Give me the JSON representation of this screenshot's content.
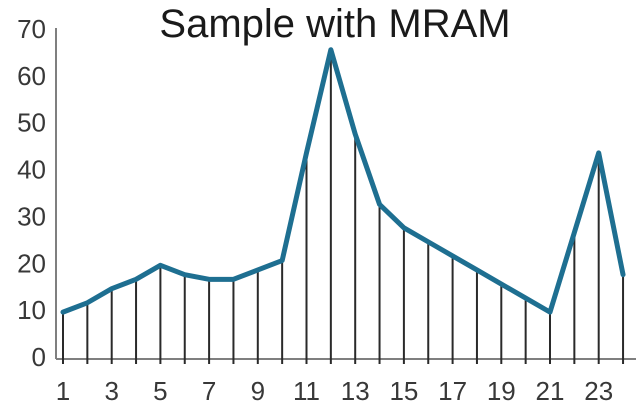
{
  "chart_data": {
    "type": "line",
    "title": "Sample with MRAM",
    "x": [
      1,
      2,
      3,
      4,
      5,
      6,
      7,
      8,
      9,
      10,
      11,
      12,
      13,
      14,
      15,
      16,
      17,
      18,
      19,
      20,
      21,
      22,
      23,
      24
    ],
    "values": [
      10,
      12,
      15,
      17,
      20,
      18,
      17,
      17,
      19,
      21,
      44,
      66,
      48,
      33,
      28,
      25,
      22,
      19,
      16,
      13,
      10,
      27,
      44,
      18
    ],
    "x_tick_labels": [
      "1",
      "3",
      "5",
      "7",
      "9",
      "11",
      "13",
      "15",
      "17",
      "19",
      "21",
      "23"
    ],
    "x_tick_values": [
      1,
      3,
      5,
      7,
      9,
      11,
      13,
      15,
      17,
      19,
      21,
      23
    ],
    "y_ticks": [
      0,
      10,
      20,
      30,
      40,
      50,
      60,
      70
    ],
    "ylim": [
      0,
      70
    ],
    "xlabel": "",
    "ylabel": "",
    "grid": false,
    "legend": "none",
    "drop_lines": true,
    "style": {
      "line_color": "#1E6F91",
      "drop_line_color": "#2a2a2a",
      "axis_color": "#7f7f7f",
      "tick_label_color": "#383838",
      "title_color": "#1a1a1a",
      "background": "#ffffff"
    }
  }
}
